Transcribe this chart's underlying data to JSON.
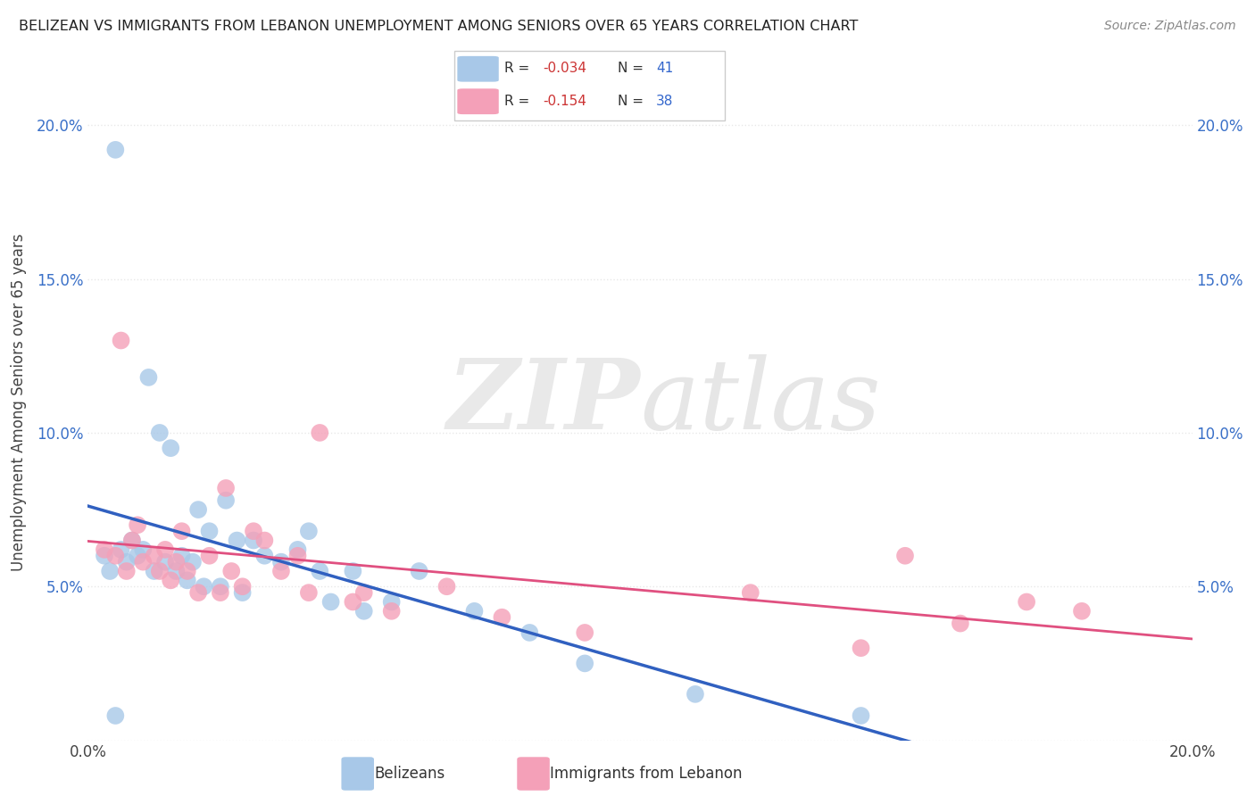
{
  "title": "BELIZEAN VS IMMIGRANTS FROM LEBANON UNEMPLOYMENT AMONG SENIORS OVER 65 YEARS CORRELATION CHART",
  "source": "Source: ZipAtlas.com",
  "ylabel": "Unemployment Among Seniors over 65 years",
  "xlim": [
    0.0,
    0.2
  ],
  "ylim": [
    0.0,
    0.22
  ],
  "x_tick_positions": [
    0.0,
    0.04,
    0.08,
    0.12,
    0.16,
    0.2
  ],
  "x_tick_labels": [
    "0.0%",
    "",
    "",
    "",
    "",
    "20.0%"
  ],
  "y_tick_positions": [
    0.0,
    0.05,
    0.1,
    0.15,
    0.2
  ],
  "y_tick_labels": [
    "",
    "5.0%",
    "10.0%",
    "15.0%",
    "20.0%"
  ],
  "belizean_R": -0.034,
  "belizean_N": 41,
  "lebanon_R": -0.154,
  "lebanon_N": 38,
  "belizean_color": "#a8c8e8",
  "lebanon_color": "#f4a0b8",
  "belizean_line_color": "#3060c0",
  "lebanon_line_color": "#e05080",
  "belizean_dash_color": "#b0b8d0",
  "grid_color": "#e8e8e8",
  "bel_x": [
    0.003,
    0.004,
    0.005,
    0.006,
    0.007,
    0.008,
    0.009,
    0.01,
    0.011,
    0.012,
    0.013,
    0.014,
    0.015,
    0.016,
    0.017,
    0.018,
    0.019,
    0.02,
    0.021,
    0.022,
    0.024,
    0.025,
    0.027,
    0.028,
    0.03,
    0.032,
    0.035,
    0.038,
    0.04,
    0.042,
    0.044,
    0.048,
    0.05,
    0.055,
    0.06,
    0.07,
    0.08,
    0.09,
    0.11,
    0.14,
    0.005
  ],
  "bel_y": [
    0.06,
    0.055,
    0.192,
    0.062,
    0.058,
    0.065,
    0.06,
    0.062,
    0.118,
    0.055,
    0.1,
    0.058,
    0.095,
    0.055,
    0.06,
    0.052,
    0.058,
    0.075,
    0.05,
    0.068,
    0.05,
    0.078,
    0.065,
    0.048,
    0.065,
    0.06,
    0.058,
    0.062,
    0.068,
    0.055,
    0.045,
    0.055,
    0.042,
    0.045,
    0.055,
    0.042,
    0.035,
    0.025,
    0.015,
    0.008,
    0.008
  ],
  "leb_x": [
    0.003,
    0.005,
    0.006,
    0.007,
    0.008,
    0.009,
    0.01,
    0.012,
    0.013,
    0.014,
    0.015,
    0.016,
    0.017,
    0.018,
    0.02,
    0.022,
    0.024,
    0.025,
    0.026,
    0.028,
    0.03,
    0.032,
    0.035,
    0.038,
    0.04,
    0.042,
    0.048,
    0.05,
    0.055,
    0.065,
    0.075,
    0.09,
    0.12,
    0.14,
    0.148,
    0.158,
    0.17,
    0.18
  ],
  "leb_y": [
    0.062,
    0.06,
    0.13,
    0.055,
    0.065,
    0.07,
    0.058,
    0.06,
    0.055,
    0.062,
    0.052,
    0.058,
    0.068,
    0.055,
    0.048,
    0.06,
    0.048,
    0.082,
    0.055,
    0.05,
    0.068,
    0.065,
    0.055,
    0.06,
    0.048,
    0.1,
    0.045,
    0.048,
    0.042,
    0.05,
    0.04,
    0.035,
    0.048,
    0.03,
    0.06,
    0.038,
    0.045,
    0.042
  ]
}
